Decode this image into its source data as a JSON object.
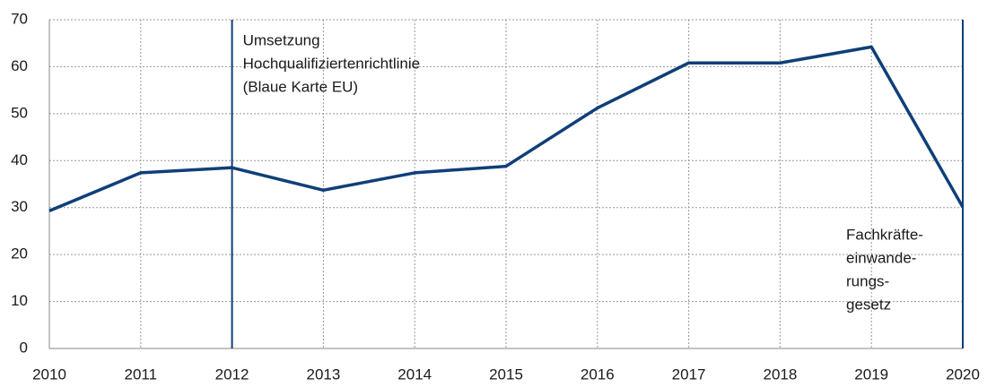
{
  "chart_data": {
    "type": "line",
    "x": [
      2010,
      2011,
      2012,
      2013,
      2014,
      2015,
      2016,
      2017,
      2018,
      2019,
      2020
    ],
    "series": [
      {
        "color": "#0f3f78",
        "values": [
          29.3,
          37.4,
          38.5,
          33.7,
          37.4,
          38.8,
          51.2,
          60.8,
          60.8,
          64.2,
          30.1
        ]
      }
    ],
    "xlim": [
      2010,
      2020
    ],
    "xticks": [
      2010,
      2011,
      2012,
      2013,
      2014,
      2015,
      2016,
      2017,
      2018,
      2019,
      2020
    ],
    "ylim": [
      0,
      70
    ],
    "yticks": [
      0,
      10,
      20,
      30,
      40,
      50,
      60,
      70
    ],
    "grid": true,
    "annotations": [
      {
        "x": 2012,
        "lines": [
          "Umsetzung",
          "Hochqualifiziertenrichtlinie",
          "(Blaue Karte EU)"
        ]
      },
      {
        "x": 2020,
        "lines": [
          "Fachkräfte-",
          "einwande-",
          "rungs-",
          "gesetz"
        ]
      }
    ]
  }
}
